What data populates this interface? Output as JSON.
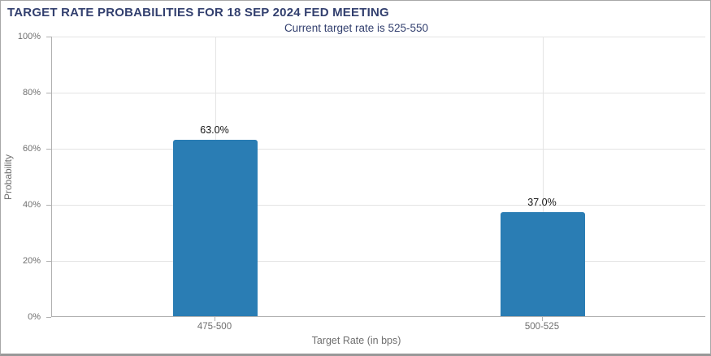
{
  "header": {
    "title": "TARGET RATE PROBABILITIES FOR 18 SEP 2024 FED MEETING",
    "subtitle": "Current target rate is 525-550",
    "title_color": "#33406f"
  },
  "chart_data": {
    "type": "bar",
    "title": "TARGET RATE PROBABILITIES FOR 18 SEP 2024 FED MEETING",
    "subtitle": "Current target rate is 525-550",
    "categories": [
      "475-500",
      "500-525"
    ],
    "values": [
      63.0,
      37.0
    ],
    "value_labels": [
      "63.0%",
      "37.0%"
    ],
    "xlabel": "Target Rate (in bps)",
    "ylabel": "Probability",
    "ylim": [
      0,
      100
    ],
    "ytick_step": 20,
    "ytick_labels": [
      "0%",
      "20%",
      "40%",
      "60%",
      "80%",
      "100%"
    ],
    "bar_color": "#2a7db4",
    "grid": true,
    "legend": false
  }
}
